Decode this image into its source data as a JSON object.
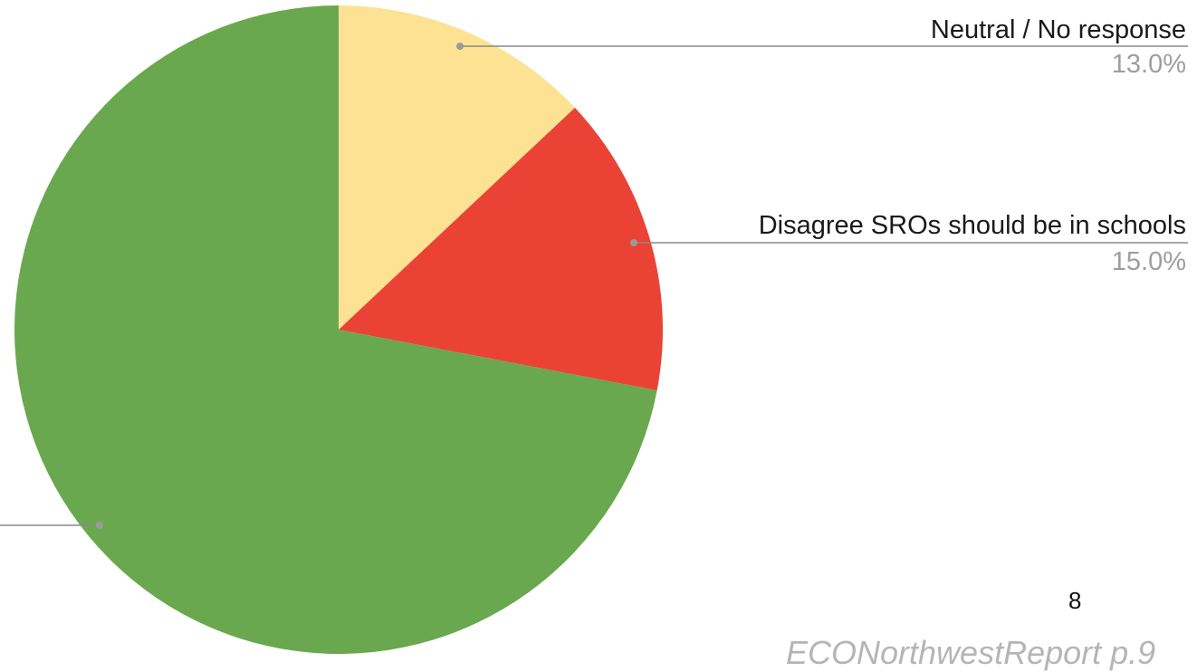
{
  "page_number": "8",
  "source_note": "ECONorthwestReport p.9",
  "chart_data": {
    "type": "pie",
    "title": "",
    "start_angle_deg": 0,
    "direction": "clockwise",
    "slices": [
      {
        "label": "Neutral / No response",
        "value": 13.0,
        "display": "13.0%",
        "color": "#fde293"
      },
      {
        "label": "Disagree SROs should be in schools",
        "value": 15.0,
        "display": "15.0%",
        "color": "#ea4335"
      },
      {
        "label": "",
        "value": 72.0,
        "display": "",
        "color": "#6aa84f"
      }
    ]
  }
}
